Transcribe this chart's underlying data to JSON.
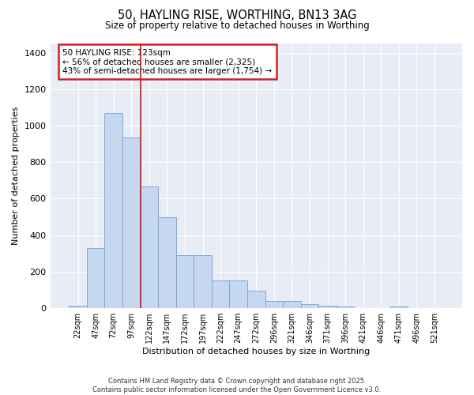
{
  "title_line1": "50, HAYLING RISE, WORTHING, BN13 3AG",
  "title_line2": "Size of property relative to detached houses in Worthing",
  "xlabel": "Distribution of detached houses by size in Worthing",
  "ylabel": "Number of detached properties",
  "background_color": "#e8edf5",
  "bar_color": "#c5d8f0",
  "bar_edge_color": "#7aaad4",
  "annotation_text": "50 HAYLING RISE: 123sqm\n← 56% of detached houses are smaller (2,325)\n43% of semi-detached houses are larger (1,754) →",
  "vline_color": "#cc2222",
  "annotation_box_color": "#cc2222",
  "categories": [
    "22sqm",
    "47sqm",
    "72sqm",
    "97sqm",
    "122sqm",
    "147sqm",
    "172sqm",
    "197sqm",
    "222sqm",
    "247sqm",
    "272sqm",
    "296sqm",
    "321sqm",
    "346sqm",
    "371sqm",
    "396sqm",
    "421sqm",
    "446sqm",
    "471sqm",
    "496sqm",
    "521sqm"
  ],
  "values": [
    15,
    330,
    1070,
    935,
    665,
    500,
    290,
    290,
    150,
    150,
    95,
    40,
    40,
    22,
    15,
    10,
    0,
    0,
    8,
    0,
    0
  ],
  "ylim": [
    0,
    1450
  ],
  "yticks": [
    0,
    200,
    400,
    600,
    800,
    1000,
    1200,
    1400
  ],
  "footer": "Contains HM Land Registry data © Crown copyright and database right 2025.\nContains public sector information licensed under the Open Government Licence v3.0.",
  "fig_bg": "#ffffff",
  "vline_bin_index": 4
}
